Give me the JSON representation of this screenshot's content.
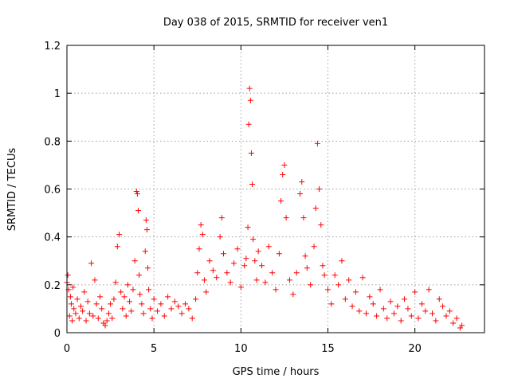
{
  "chart_data": {
    "type": "scatter",
    "title": "Day 038 of 2015, SRMTID for receiver ven1",
    "xlabel": "GPS time / hours",
    "ylabel": "SRMTID / TECUs",
    "xlim": [
      0,
      24
    ],
    "ylim": [
      0,
      1.2
    ],
    "xticks": [
      0,
      5,
      10,
      15,
      20
    ],
    "xtick_labels": [
      "0",
      "5",
      "10",
      "15",
      "20"
    ],
    "yticks": [
      0,
      0.2,
      0.4,
      0.6,
      0.8,
      1.0,
      1.2
    ],
    "ytick_labels": [
      "0",
      "0.2",
      "0.4",
      "0.6",
      "0.8",
      "1",
      "1.2"
    ],
    "grid": true,
    "marker": "+",
    "color": "#ff0000",
    "series": [
      {
        "name": "SRMTID",
        "x": [
          0.0,
          0.05,
          0.1,
          0.15,
          0.2,
          0.25,
          0.3,
          0.35,
          0.4,
          0.5,
          0.6,
          0.7,
          0.8,
          0.9,
          1.0,
          1.1,
          1.2,
          1.3,
          1.4,
          1.5,
          1.6,
          1.7,
          1.8,
          1.9,
          2.0,
          2.1,
          2.2,
          2.3,
          2.4,
          2.5,
          2.6,
          2.7,
          2.8,
          2.9,
          3.0,
          3.1,
          3.2,
          3.3,
          3.4,
          3.5,
          3.6,
          3.7,
          3.8,
          3.9,
          4.0,
          4.05,
          4.1,
          4.15,
          4.2,
          4.3,
          4.4,
          4.5,
          4.55,
          4.6,
          4.65,
          4.7,
          4.8,
          4.9,
          5.0,
          5.2,
          5.4,
          5.6,
          5.8,
          6.0,
          6.2,
          6.4,
          6.6,
          6.8,
          7.0,
          7.2,
          7.4,
          7.5,
          7.6,
          7.7,
          7.8,
          7.9,
          8.0,
          8.2,
          8.4,
          8.6,
          8.8,
          8.9,
          9.0,
          9.2,
          9.4,
          9.6,
          9.8,
          10.0,
          10.2,
          10.3,
          10.4,
          10.45,
          10.5,
          10.55,
          10.6,
          10.65,
          10.7,
          10.8,
          10.9,
          11.0,
          11.2,
          11.4,
          11.6,
          11.8,
          12.0,
          12.2,
          12.3,
          12.4,
          12.5,
          12.6,
          12.8,
          13.0,
          13.2,
          13.4,
          13.5,
          13.6,
          13.7,
          13.8,
          14.0,
          14.2,
          14.3,
          14.4,
          14.5,
          14.6,
          14.7,
          14.8,
          15.0,
          15.2,
          15.4,
          15.6,
          15.8,
          16.0,
          16.2,
          16.4,
          16.6,
          16.8,
          17.0,
          17.2,
          17.4,
          17.6,
          17.8,
          18.0,
          18.2,
          18.4,
          18.6,
          18.8,
          19.0,
          19.2,
          19.4,
          19.6,
          19.8,
          20.0,
          20.2,
          20.4,
          20.6,
          20.8,
          21.0,
          21.2,
          21.4,
          21.6,
          21.8,
          22.0,
          22.2,
          22.4,
          22.6,
          22.7
        ],
        "values": [
          0.21,
          0.24,
          0.18,
          0.07,
          0.15,
          0.12,
          0.05,
          0.19,
          0.1,
          0.08,
          0.14,
          0.06,
          0.11,
          0.09,
          0.17,
          0.05,
          0.13,
          0.08,
          0.29,
          0.07,
          0.22,
          0.12,
          0.06,
          0.15,
          0.1,
          0.04,
          0.03,
          0.05,
          0.08,
          0.12,
          0.06,
          0.14,
          0.21,
          0.36,
          0.41,
          0.17,
          0.1,
          0.15,
          0.07,
          0.2,
          0.13,
          0.09,
          0.18,
          0.3,
          0.59,
          0.58,
          0.51,
          0.24,
          0.16,
          0.12,
          0.08,
          0.34,
          0.47,
          0.43,
          0.27,
          0.18,
          0.1,
          0.06,
          0.14,
          0.09,
          0.12,
          0.07,
          0.15,
          0.1,
          0.13,
          0.11,
          0.08,
          0.12,
          0.1,
          0.06,
          0.14,
          0.25,
          0.35,
          0.45,
          0.41,
          0.22,
          0.17,
          0.3,
          0.26,
          0.23,
          0.4,
          0.48,
          0.33,
          0.25,
          0.21,
          0.29,
          0.35,
          0.19,
          0.28,
          0.31,
          0.44,
          0.87,
          1.02,
          0.97,
          0.75,
          0.62,
          0.39,
          0.3,
          0.22,
          0.34,
          0.28,
          0.21,
          0.36,
          0.25,
          0.18,
          0.33,
          0.55,
          0.66,
          0.7,
          0.48,
          0.22,
          0.16,
          0.25,
          0.58,
          0.63,
          0.48,
          0.32,
          0.27,
          0.2,
          0.36,
          0.52,
          0.79,
          0.6,
          0.45,
          0.28,
          0.24,
          0.18,
          0.12,
          0.24,
          0.2,
          0.3,
          0.14,
          0.22,
          0.11,
          0.17,
          0.09,
          0.23,
          0.08,
          0.15,
          0.12,
          0.07,
          0.18,
          0.1,
          0.06,
          0.13,
          0.08,
          0.11,
          0.05,
          0.14,
          0.1,
          0.07,
          0.17,
          0.06,
          0.12,
          0.09,
          0.18,
          0.08,
          0.05,
          0.14,
          0.11,
          0.07,
          0.09,
          0.04,
          0.06,
          0.02,
          0.03
        ]
      }
    ]
  }
}
